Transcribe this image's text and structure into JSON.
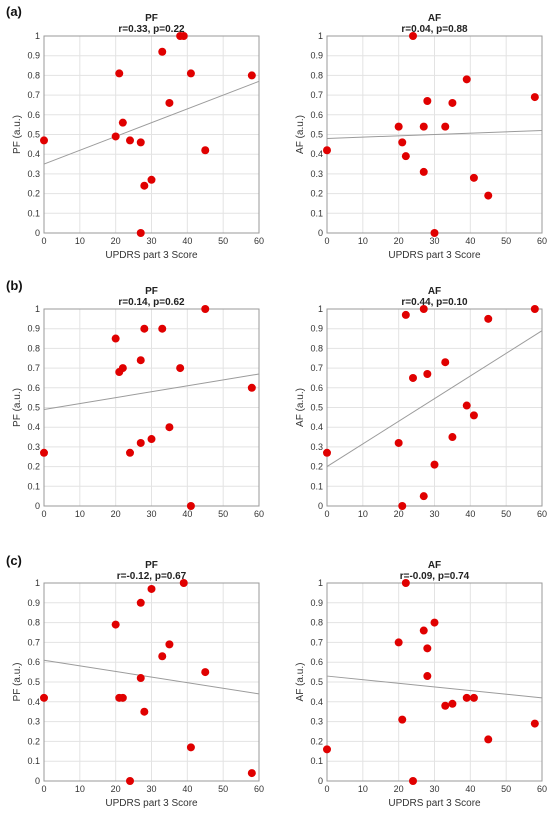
{
  "rows": [
    {
      "label": "(a)"
    },
    {
      "label": "(b)"
    },
    {
      "label": "(c)"
    }
  ],
  "chart_data": [
    {
      "type": "scatter",
      "row": 0,
      "col": 0,
      "title": "PF",
      "stats": "r=0.33, p=0.22",
      "xlabel": "UPDRS part 3 Score",
      "ylabel": "PF (a.u.)",
      "xlim": [
        0,
        60
      ],
      "ylim": [
        0,
        1
      ],
      "xticks": [
        0,
        10,
        20,
        30,
        40,
        50,
        60
      ],
      "yticks": [
        0,
        0.1,
        0.2,
        0.3,
        0.4,
        0.5,
        0.6,
        0.7,
        0.8,
        0.9,
        1
      ],
      "grid": true,
      "fit": [
        0.35,
        0.77
      ],
      "x": [
        0,
        20,
        21,
        22,
        24,
        27,
        28,
        30,
        33,
        35,
        38,
        39,
        41,
        45,
        58,
        27
      ],
      "y": [
        0.47,
        0.49,
        0.81,
        0.56,
        0.47,
        0.46,
        0.24,
        0.27,
        0.92,
        0.66,
        1.0,
        1.0,
        0.81,
        0.42,
        0.8,
        0.0
      ]
    },
    {
      "type": "scatter",
      "row": 0,
      "col": 1,
      "title": "AF",
      "stats": "r=0.04, p=0.88",
      "xlabel": "UPDRS part 3 Score",
      "ylabel": "AF (a.u.)",
      "xlim": [
        0,
        60
      ],
      "ylim": [
        0,
        1
      ],
      "xticks": [
        0,
        10,
        20,
        30,
        40,
        50,
        60
      ],
      "yticks": [
        0,
        0.1,
        0.2,
        0.3,
        0.4,
        0.5,
        0.6,
        0.7,
        0.8,
        0.9,
        1
      ],
      "grid": true,
      "fit": [
        0.48,
        0.52
      ],
      "x": [
        0,
        20,
        21,
        22,
        24,
        27,
        27,
        28,
        30,
        33,
        35,
        39,
        41,
        45,
        58
      ],
      "y": [
        0.42,
        0.54,
        0.46,
        0.39,
        1.0,
        0.54,
        0.31,
        0.67,
        0.0,
        0.54,
        0.66,
        0.78,
        0.28,
        0.19,
        0.69
      ]
    },
    {
      "type": "scatter",
      "row": 1,
      "col": 0,
      "title": "PF",
      "stats": "r=0.14, p=0.62",
      "xlabel": "",
      "ylabel": "PF (a.u.)",
      "xlim": [
        0,
        60
      ],
      "ylim": [
        0,
        1
      ],
      "xticks": [
        0,
        10,
        20,
        30,
        40,
        50,
        60
      ],
      "yticks": [
        0,
        0.1,
        0.2,
        0.3,
        0.4,
        0.5,
        0.6,
        0.7,
        0.8,
        0.9,
        1
      ],
      "grid": true,
      "fit": [
        0.49,
        0.67
      ],
      "x": [
        0,
        20,
        21,
        22,
        24,
        27,
        27,
        28,
        30,
        33,
        35,
        38,
        41,
        45,
        58
      ],
      "y": [
        0.27,
        0.85,
        0.68,
        0.7,
        0.27,
        0.74,
        0.32,
        0.9,
        0.34,
        0.9,
        0.4,
        0.7,
        0.0,
        1.0,
        0.6
      ]
    },
    {
      "type": "scatter",
      "row": 1,
      "col": 1,
      "title": "AF",
      "stats": "r=0.44, p=0.10",
      "xlabel": "",
      "ylabel": "AF (a.u.)",
      "xlim": [
        0,
        60
      ],
      "ylim": [
        0,
        1
      ],
      "xticks": [
        0,
        10,
        20,
        30,
        40,
        50,
        60
      ],
      "yticks": [
        0,
        0.1,
        0.2,
        0.3,
        0.4,
        0.5,
        0.6,
        0.7,
        0.8,
        0.9,
        1
      ],
      "grid": true,
      "fit": [
        0.2,
        0.89
      ],
      "x": [
        0,
        20,
        21,
        22,
        24,
        27,
        27,
        28,
        30,
        33,
        35,
        39,
        41,
        45,
        58
      ],
      "y": [
        0.27,
        0.32,
        0.0,
        0.97,
        0.65,
        1.0,
        0.05,
        0.67,
        0.21,
        0.73,
        0.35,
        0.51,
        0.46,
        0.95,
        1.0
      ]
    },
    {
      "type": "scatter",
      "row": 2,
      "col": 0,
      "title": "PF",
      "stats": "r=-0.12, p=0.67",
      "xlabel": "UPDRS part 3 Score",
      "ylabel": "PF (a.u.)",
      "xlim": [
        0,
        60
      ],
      "ylim": [
        0,
        1
      ],
      "xticks": [
        0,
        10,
        20,
        30,
        40,
        50,
        60
      ],
      "yticks": [
        0,
        0.1,
        0.2,
        0.3,
        0.4,
        0.5,
        0.6,
        0.7,
        0.8,
        0.9,
        1
      ],
      "grid": true,
      "fit": [
        0.61,
        0.44
      ],
      "x": [
        0,
        20,
        21,
        22,
        24,
        27,
        27,
        28,
        30,
        33,
        35,
        39,
        41,
        45,
        58
      ],
      "y": [
        0.42,
        0.79,
        0.42,
        0.42,
        0.0,
        0.9,
        0.52,
        0.35,
        0.97,
        0.63,
        0.69,
        1.0,
        0.17,
        0.55,
        0.04
      ]
    },
    {
      "type": "scatter",
      "row": 2,
      "col": 1,
      "title": "AF",
      "stats": "r=-0.09, p=0.74",
      "xlabel": "UPDRS part 3 Score",
      "ylabel": "AF (a.u.)",
      "xlim": [
        0,
        60
      ],
      "ylim": [
        0,
        1
      ],
      "xticks": [
        0,
        10,
        20,
        30,
        40,
        50,
        60
      ],
      "yticks": [
        0,
        0.1,
        0.2,
        0.3,
        0.4,
        0.5,
        0.6,
        0.7,
        0.8,
        0.9,
        1
      ],
      "grid": true,
      "fit": [
        0.53,
        0.42
      ],
      "x": [
        0,
        20,
        21,
        22,
        24,
        27,
        28,
        28,
        30,
        33,
        35,
        39,
        41,
        45,
        58
      ],
      "y": [
        0.16,
        0.7,
        0.31,
        1.0,
        0.0,
        0.76,
        0.53,
        0.67,
        0.8,
        0.38,
        0.39,
        0.42,
        0.42,
        0.21,
        0.29
      ]
    }
  ],
  "colors": {
    "marker": "#e00000",
    "fit": "#9b9b9b",
    "grid": "#e3e3e3",
    "frame": "#9a9a9a"
  }
}
